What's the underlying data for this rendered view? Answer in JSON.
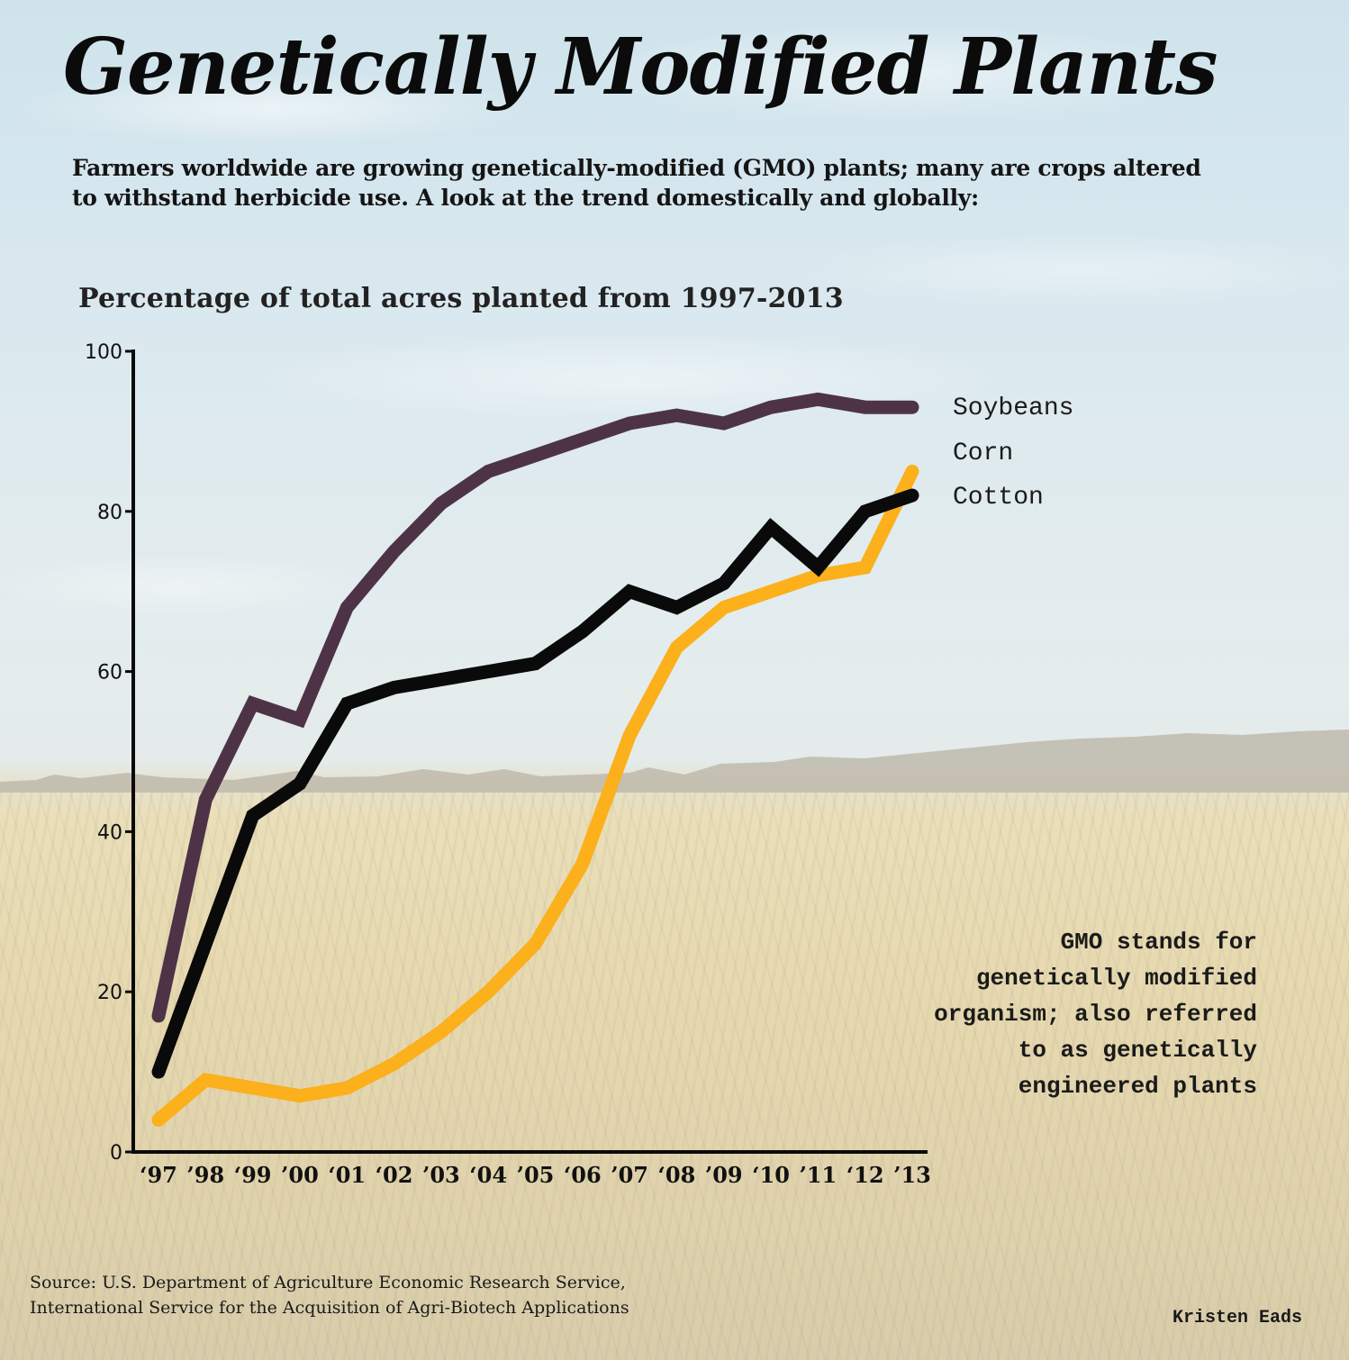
{
  "header": {
    "title": "Genetically Modified Plants",
    "subtitle": "Farmers worldwide are growing genetically-modified (GMO) plants; many are crops altered to withstand herbicide use. A look at the trend domestically and globally:"
  },
  "note": {
    "lines": [
      "GMO stands for",
      "genetically modified",
      "organism; also referred",
      "to as genetically",
      "engineered plants"
    ]
  },
  "footer": {
    "source_lines": [
      "Source: U.S. Department of Agriculture Economic Research Service,",
      "International Service for the Acquisition of Agri-Biotech Applications"
    ],
    "author": "Kristen Eads"
  },
  "colors": {
    "soybeans": "#4e3347",
    "corn": "#fbb01c",
    "cotton": "#0a0a0a",
    "axis": "#0a0a0a"
  },
  "chart_data": {
    "type": "line",
    "title": "Percentage of total acres planted from 1997-2013",
    "xlabel": "",
    "ylabel": "",
    "ylim": [
      0,
      100
    ],
    "yticks": [
      0,
      20,
      40,
      60,
      80,
      100
    ],
    "grid": false,
    "legend": "right (direct labels at line ends)",
    "categories": [
      "‘97",
      "’98",
      "‘99",
      "’00",
      "‘01",
      "‘02",
      "’03",
      "‘04",
      "’05",
      "‘06",
      "’07",
      "‘08",
      "’09",
      "‘10",
      "’11",
      "‘12",
      "’13"
    ],
    "x": [
      1997,
      1998,
      1999,
      2000,
      2001,
      2002,
      2003,
      2004,
      2005,
      2006,
      2007,
      2008,
      2009,
      2010,
      2011,
      2012,
      2013
    ],
    "series": [
      {
        "name": "Soybeans",
        "color_key": "soybeans",
        "values": [
          17,
          44,
          56,
          54,
          68,
          75,
          81,
          85,
          87,
          89,
          91,
          92,
          91,
          93,
          94,
          93,
          93
        ]
      },
      {
        "name": "Corn",
        "color_key": "corn",
        "values": [
          4,
          9,
          8,
          7,
          8,
          11,
          15,
          20,
          26,
          36,
          52,
          63,
          68,
          70,
          72,
          73,
          85
        ]
      },
      {
        "name": "Cotton",
        "color_key": "cotton",
        "values": [
          10,
          26,
          42,
          46,
          56,
          58,
          59,
          60,
          61,
          65,
          70,
          68,
          71,
          78,
          73,
          80,
          82
        ]
      }
    ],
    "legend_order": [
      "Soybeans",
      "Corn",
      "Cotton"
    ]
  }
}
